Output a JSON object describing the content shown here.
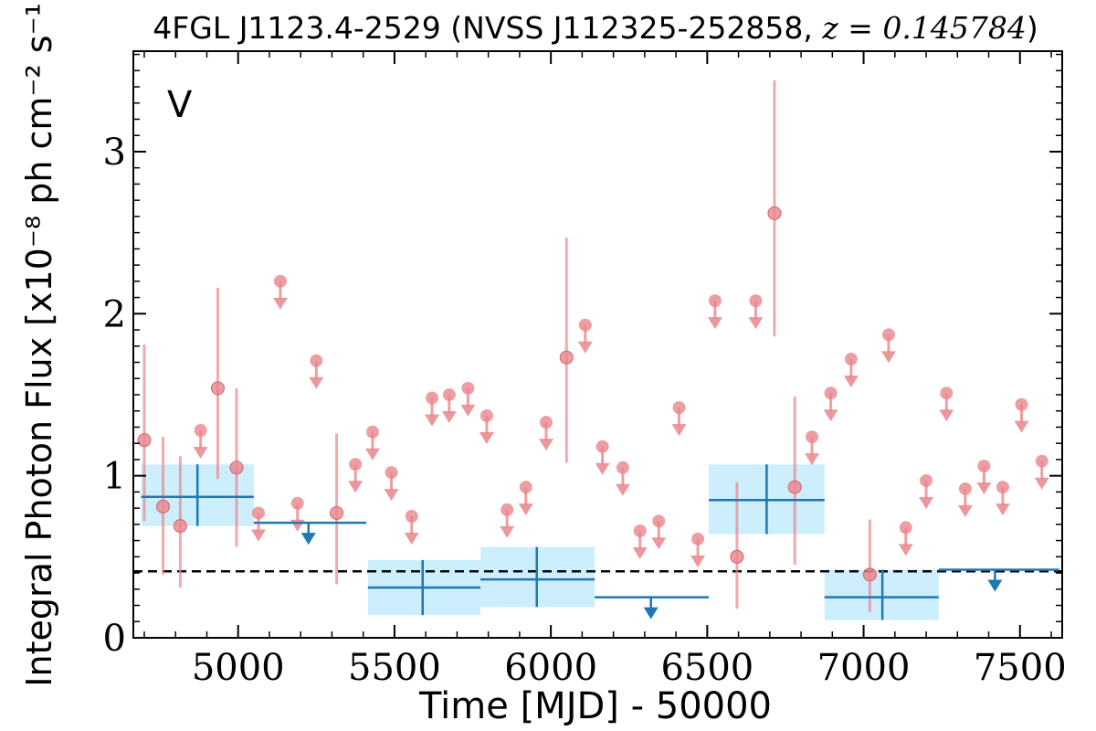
{
  "chart_data": {
    "type": "scatter",
    "title_prefix": "4FGL J1123.4-2529 (NVSS J112325-252858, ",
    "title_z": "z = 0.145784",
    "title_suffix": ")",
    "xlabel": "Time [MJD] - 50000",
    "ylabel": "Integral Photon Flux [x10⁻⁸ ph cm⁻² s⁻¹]",
    "panel_label": "V",
    "xlim": [
      4665,
      7635
    ],
    "ylim": [
      0,
      3.62
    ],
    "x_ticks": [
      5000,
      5500,
      6000,
      6500,
      7000,
      7500
    ],
    "y_ticks": [
      0,
      1,
      2,
      3
    ],
    "colors": {
      "short_bin": "#e8868c",
      "long_bin": "#1f77b4",
      "band": "#cdeefc",
      "baseline": "#000000"
    },
    "baseline_flux": 0.41,
    "short_bins_detections": [
      {
        "x": 4700,
        "y": 1.22,
        "lo": 0.72,
        "hi": 1.81
      },
      {
        "x": 4760,
        "y": 0.81,
        "lo": 0.39,
        "hi": 1.24
      },
      {
        "x": 4815,
        "y": 0.69,
        "lo": 0.31,
        "hi": 1.12
      },
      {
        "x": 4935,
        "y": 1.54,
        "lo": 0.98,
        "hi": 2.16
      },
      {
        "x": 4995,
        "y": 1.05,
        "lo": 0.56,
        "hi": 1.54
      },
      {
        "x": 5315,
        "y": 0.77,
        "lo": 0.33,
        "hi": 1.26
      },
      {
        "x": 6050,
        "y": 1.73,
        "lo": 1.08,
        "hi": 2.47
      },
      {
        "x": 6595,
        "y": 0.5,
        "lo": 0.18,
        "hi": 0.96
      },
      {
        "x": 6715,
        "y": 2.62,
        "lo": 1.86,
        "hi": 3.44
      },
      {
        "x": 6780,
        "y": 0.93,
        "lo": 0.45,
        "hi": 1.49
      },
      {
        "x": 7020,
        "y": 0.39,
        "lo": 0.16,
        "hi": 0.73
      }
    ],
    "short_bins_upper_limits": [
      {
        "x": 4880,
        "y": 1.28
      },
      {
        "x": 5065,
        "y": 0.77
      },
      {
        "x": 5135,
        "y": 2.2
      },
      {
        "x": 5190,
        "y": 0.83
      },
      {
        "x": 5250,
        "y": 1.71
      },
      {
        "x": 5375,
        "y": 1.07
      },
      {
        "x": 5430,
        "y": 1.27
      },
      {
        "x": 5490,
        "y": 1.02
      },
      {
        "x": 5555,
        "y": 0.75
      },
      {
        "x": 5620,
        "y": 1.48
      },
      {
        "x": 5675,
        "y": 1.5
      },
      {
        "x": 5735,
        "y": 1.54
      },
      {
        "x": 5795,
        "y": 1.37
      },
      {
        "x": 5860,
        "y": 0.79
      },
      {
        "x": 5920,
        "y": 0.93
      },
      {
        "x": 5985,
        "y": 1.33
      },
      {
        "x": 6110,
        "y": 1.93
      },
      {
        "x": 6165,
        "y": 1.18
      },
      {
        "x": 6230,
        "y": 1.05
      },
      {
        "x": 6285,
        "y": 0.66
      },
      {
        "x": 6345,
        "y": 0.72
      },
      {
        "x": 6410,
        "y": 1.42
      },
      {
        "x": 6470,
        "y": 0.61
      },
      {
        "x": 6525,
        "y": 2.08
      },
      {
        "x": 6655,
        "y": 2.08
      },
      {
        "x": 6835,
        "y": 1.24
      },
      {
        "x": 6895,
        "y": 1.51
      },
      {
        "x": 6960,
        "y": 1.72
      },
      {
        "x": 7080,
        "y": 1.87
      },
      {
        "x": 7135,
        "y": 0.68
      },
      {
        "x": 7200,
        "y": 0.97
      },
      {
        "x": 7265,
        "y": 1.51
      },
      {
        "x": 7325,
        "y": 0.92
      },
      {
        "x": 7385,
        "y": 1.06
      },
      {
        "x": 7445,
        "y": 0.93
      },
      {
        "x": 7505,
        "y": 1.44
      },
      {
        "x": 7570,
        "y": 1.09
      }
    ],
    "long_bins_detections": [
      {
        "x": 4870,
        "x0": 4690,
        "x1": 5050,
        "y": 0.87,
        "lo": 0.69,
        "hi": 1.07
      },
      {
        "x": 5590,
        "x0": 5415,
        "x1": 5775,
        "y": 0.31,
        "lo": 0.14,
        "hi": 0.48
      },
      {
        "x": 5955,
        "x0": 5775,
        "x1": 6140,
        "y": 0.36,
        "lo": 0.19,
        "hi": 0.56
      },
      {
        "x": 6690,
        "x0": 6505,
        "x1": 6875,
        "y": 0.85,
        "lo": 0.64,
        "hi": 1.07
      },
      {
        "x": 7060,
        "x0": 6875,
        "x1": 7240,
        "y": 0.25,
        "lo": 0.11,
        "hi": 0.42
      }
    ],
    "long_bins_upper_limits": [
      {
        "x": 5225,
        "x0": 5050,
        "x1": 5410,
        "y": 0.71
      },
      {
        "x": 6320,
        "x0": 6140,
        "x1": 6505,
        "y": 0.25
      },
      {
        "x": 7420,
        "x0": 7240,
        "x1": 7625,
        "y": 0.42
      }
    ]
  }
}
